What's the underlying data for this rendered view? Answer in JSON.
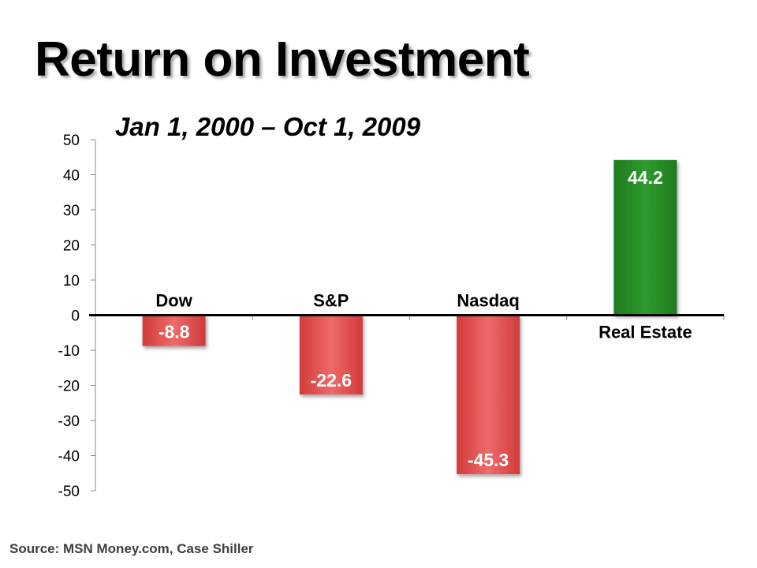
{
  "title": "Return on Investment",
  "subtitle": "Jan 1, 2000 – Oct 1, 2009",
  "source": "Source: MSN Money.com, Case Shiller",
  "colors": {
    "negative": "#d23a3a",
    "negative_light": "#ee6a6a",
    "positive": "#1e7a1e",
    "positive_light": "#2f9a2f"
  },
  "chart_data": {
    "type": "bar",
    "categories": [
      "Dow",
      "S&P",
      "Nasdaq",
      "Real Estate"
    ],
    "values": [
      -8.8,
      -22.6,
      -45.3,
      44.2
    ],
    "value_labels": [
      "-8.8",
      "-22.6",
      "-45.3",
      "44.2"
    ],
    "ylim": [
      -50,
      50
    ],
    "yticks": [
      "50",
      "40",
      "30",
      "20",
      "10",
      "0",
      "-10",
      "-20",
      "-30",
      "-40",
      "-50"
    ],
    "xlabel": "",
    "ylabel": "",
    "grid": false,
    "legend": "none"
  }
}
